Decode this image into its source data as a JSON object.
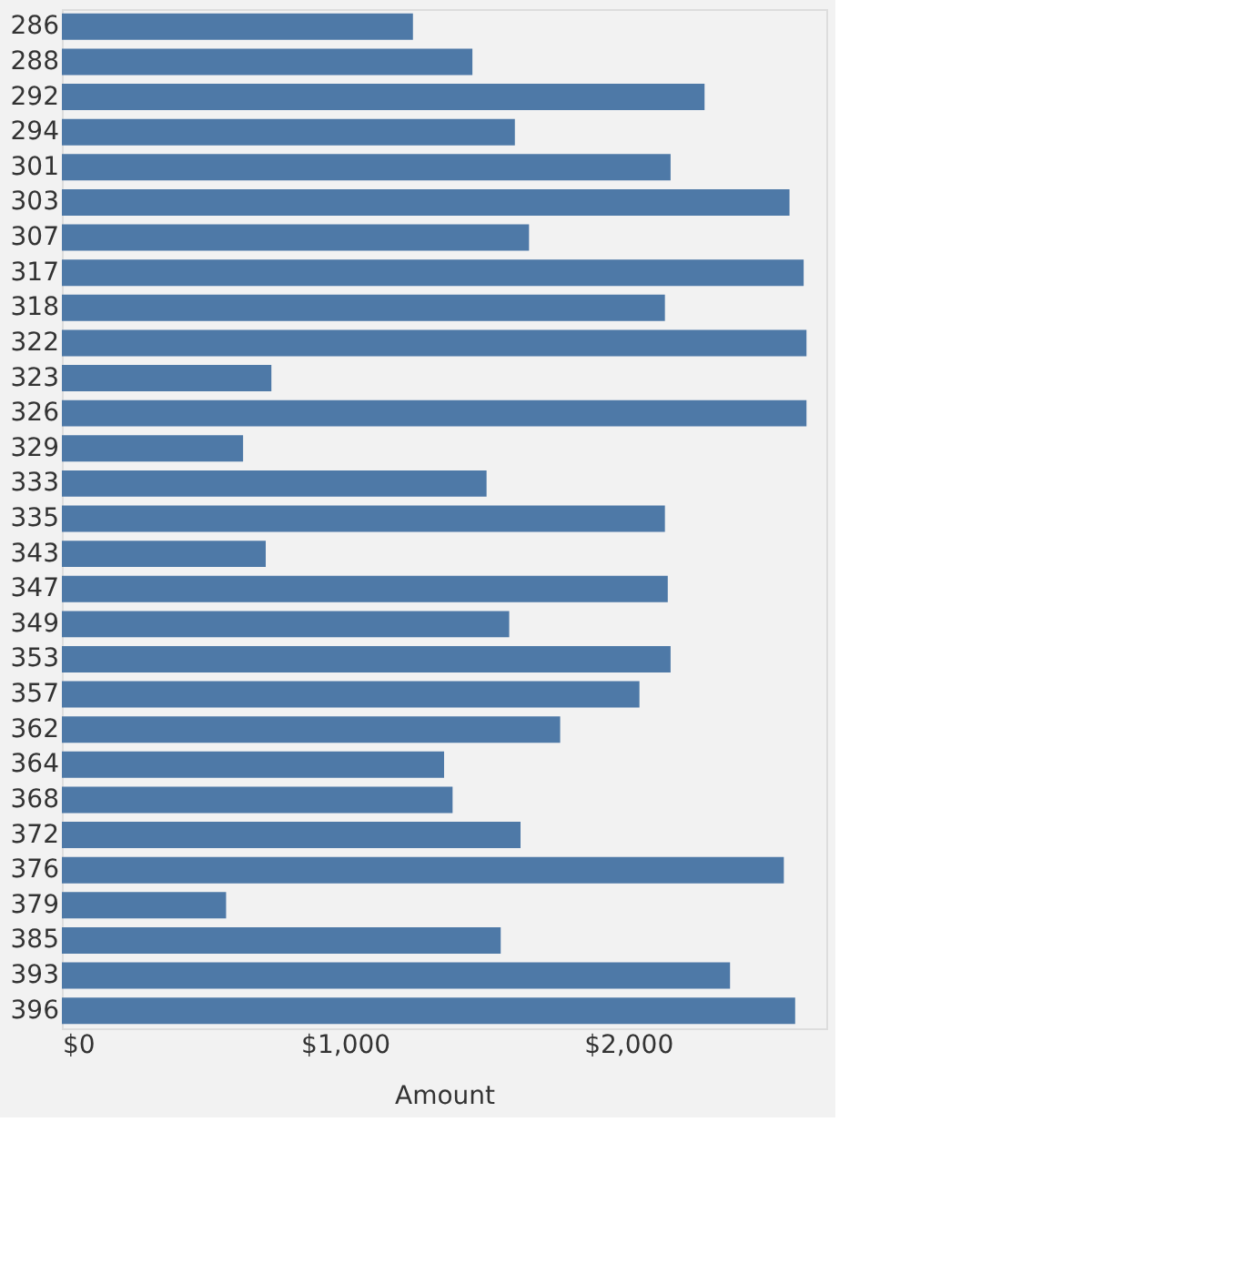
{
  "chart_data": {
    "type": "bar",
    "orientation": "horizontal",
    "xlabel": "Amount",
    "categories": [
      "286",
      "288",
      "292",
      "294",
      "301",
      "303",
      "307",
      "317",
      "318",
      "322",
      "323",
      "326",
      "329",
      "333",
      "335",
      "343",
      "347",
      "349",
      "353",
      "357",
      "362",
      "364",
      "368",
      "372",
      "376",
      "379",
      "385",
      "393",
      "396"
    ],
    "values": [
      1240,
      1450,
      2270,
      1600,
      2150,
      2570,
      1650,
      2620,
      2130,
      2630,
      740,
      2630,
      640,
      1500,
      2130,
      720,
      2140,
      1580,
      2150,
      2040,
      1760,
      1350,
      1380,
      1620,
      2550,
      580,
      1550,
      2360,
      2590
    ],
    "color": "#4e79a7",
    "xlim": [
      0,
      2700
    ],
    "xticks": [
      {
        "value": 0,
        "label": "$0"
      },
      {
        "value": 1000,
        "label": "$1,000"
      },
      {
        "value": 2000,
        "label": "$2,000"
      }
    ],
    "grid": false
  }
}
